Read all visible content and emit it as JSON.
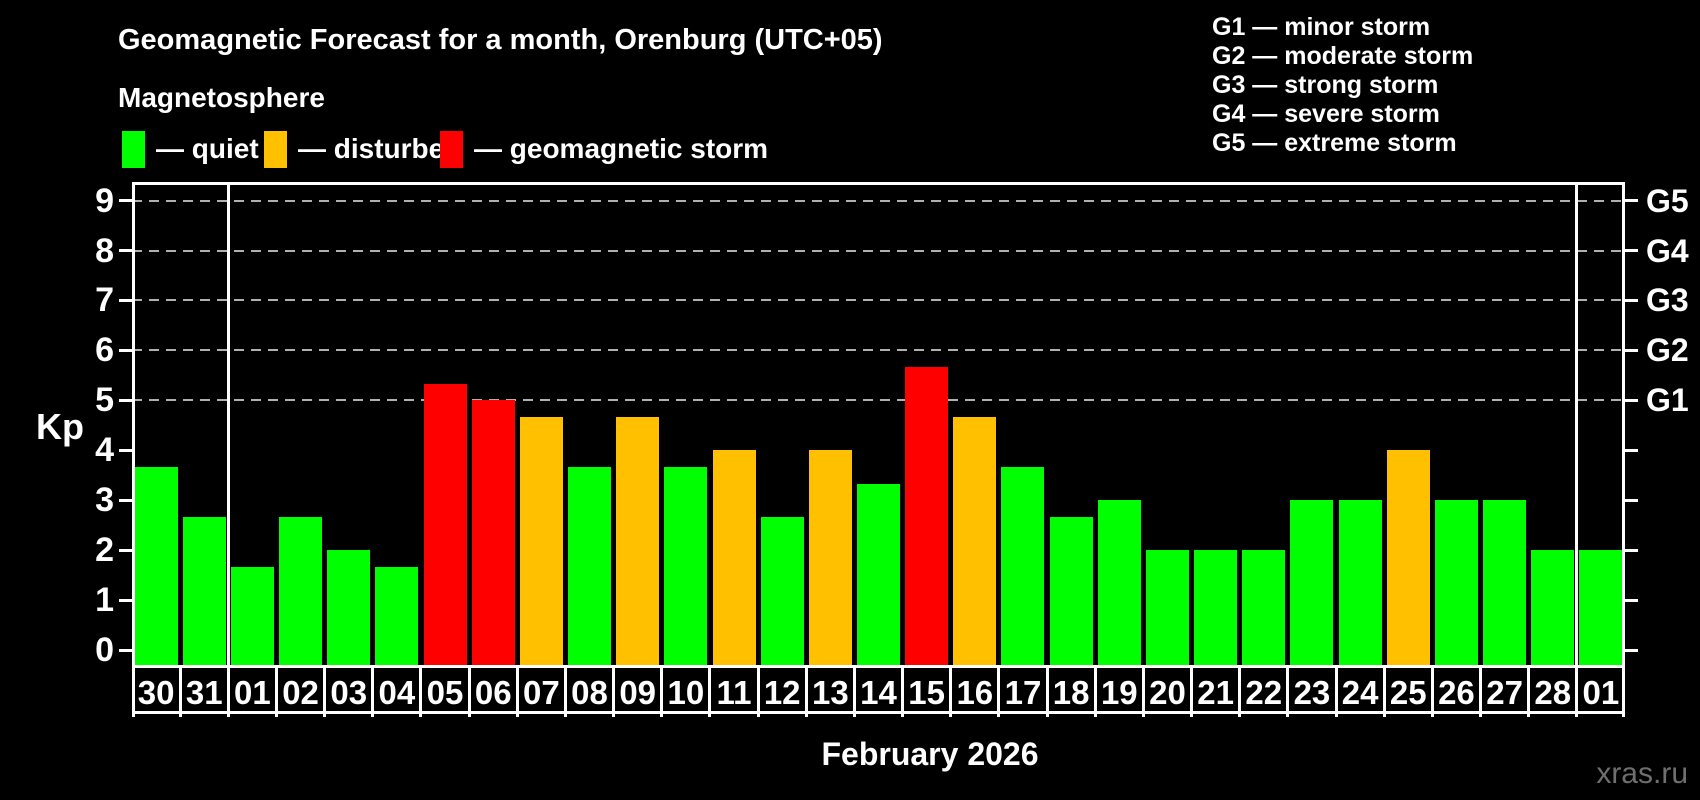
{
  "header": {
    "title": "Geomagnetic Forecast for a month, Orenburg (UTC+05)",
    "subtitle": "Magnetosphere"
  },
  "legend": {
    "items": [
      {
        "key": "quiet",
        "label": "— quiet",
        "color": "#00ff00"
      },
      {
        "key": "disturbed",
        "label": "— disturbed",
        "color": "#ffc000"
      },
      {
        "key": "storm",
        "label": "— geomagnetic storm",
        "color": "#ff0000"
      }
    ]
  },
  "storm_scale": {
    "lines": [
      "G1 — minor storm",
      "G2 — moderate storm",
      "G3 — strong storm",
      "G4 — severe storm",
      "G5 — extreme storm"
    ]
  },
  "footer": {
    "caption": "February 2026",
    "watermark": "xras.ru"
  },
  "chart_data": {
    "type": "bar",
    "title": "Geomagnetic Forecast for a month, Orenburg (UTC+05)",
    "subtitle": "Magnetosphere",
    "xlabel": "February 2026",
    "ylabel": "Kp",
    "ylim": [
      0,
      9
    ],
    "yticks": [
      0,
      1,
      2,
      3,
      4,
      5,
      6,
      7,
      8,
      9
    ],
    "grid_dashed_at": [
      5,
      6,
      7,
      8,
      9
    ],
    "grid_color": "#b0b0b0",
    "legend_position": "top-left",
    "right_axis": [
      {
        "kp": 5,
        "label": "G1"
      },
      {
        "kp": 6,
        "label": "G2"
      },
      {
        "kp": 7,
        "label": "G3"
      },
      {
        "kp": 8,
        "label": "G4"
      },
      {
        "kp": 9,
        "label": "G5"
      }
    ],
    "categories": [
      "30",
      "31",
      "01",
      "02",
      "03",
      "04",
      "05",
      "06",
      "07",
      "08",
      "09",
      "10",
      "11",
      "12",
      "13",
      "14",
      "15",
      "16",
      "17",
      "18",
      "19",
      "20",
      "21",
      "22",
      "23",
      "24",
      "25",
      "26",
      "27",
      "28",
      "01"
    ],
    "values": [
      3.67,
      2.67,
      1.67,
      2.67,
      2,
      1.67,
      5.33,
      5,
      4.67,
      3.67,
      4.67,
      3.67,
      4,
      2.67,
      4,
      3.33,
      5.67,
      4.67,
      3.67,
      2.67,
      3,
      2,
      2,
      2,
      3,
      3,
      4,
      3,
      3,
      2,
      2
    ],
    "statuses": [
      "quiet",
      "quiet",
      "quiet",
      "quiet",
      "quiet",
      "quiet",
      "storm",
      "storm",
      "disturbed",
      "quiet",
      "disturbed",
      "quiet",
      "disturbed",
      "quiet",
      "disturbed",
      "quiet",
      "storm",
      "disturbed",
      "quiet",
      "quiet",
      "quiet",
      "quiet",
      "quiet",
      "quiet",
      "quiet",
      "quiet",
      "disturbed",
      "quiet",
      "quiet",
      "quiet",
      "quiet"
    ],
    "status_colors": {
      "quiet": "#00ff00",
      "disturbed": "#ffc000",
      "storm": "#ff0000"
    },
    "month_separator_indices": [
      2,
      30
    ]
  }
}
